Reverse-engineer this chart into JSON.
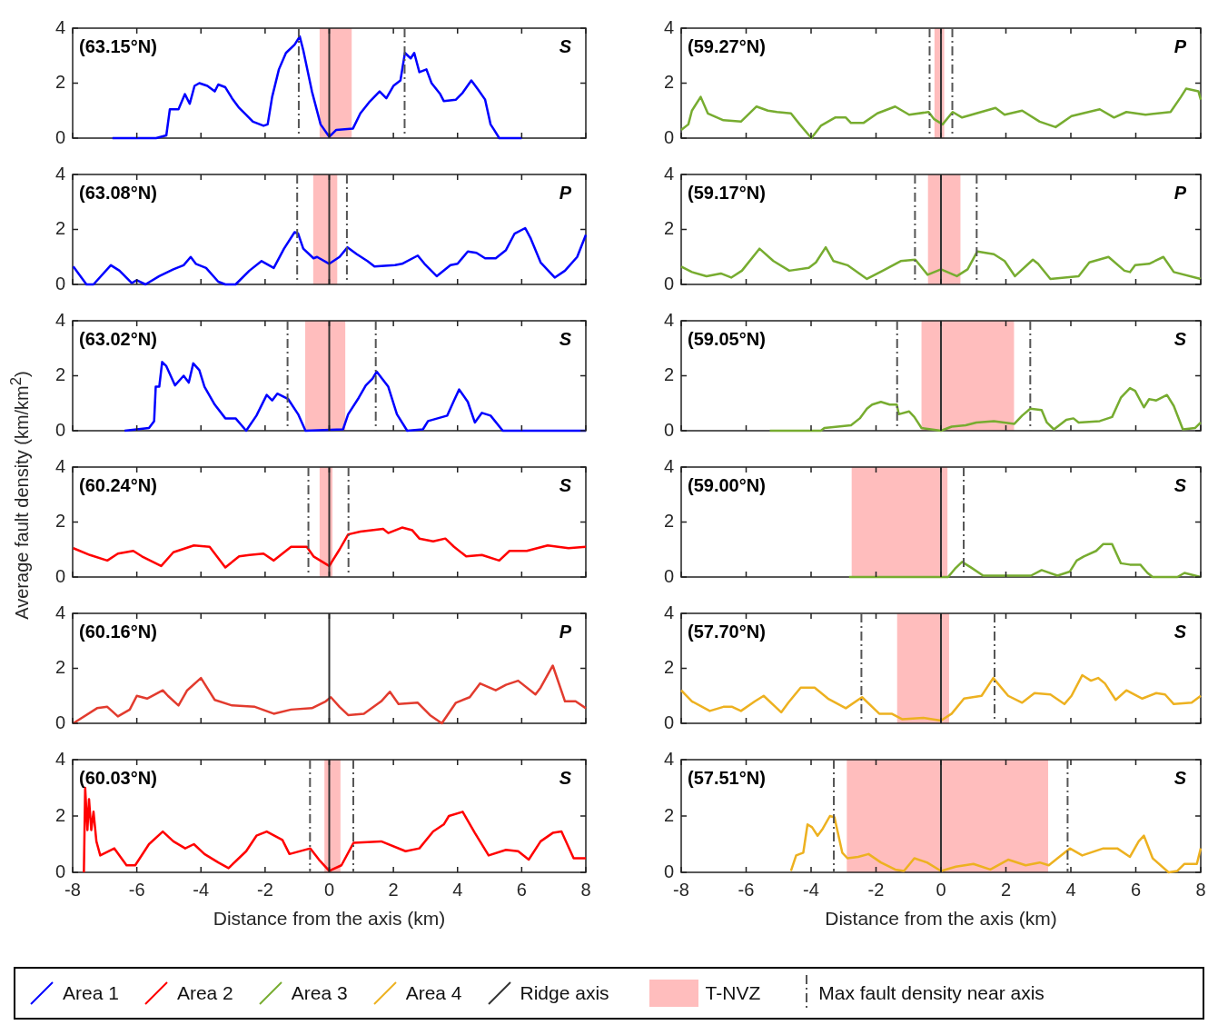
{
  "chart_data": [
    {
      "type": "line",
      "title": "(63.15°N)",
      "annotations": [
        "S"
      ],
      "legend": "bottom",
      "tick_labels": "y",
      "xlim": [
        -8,
        8
      ],
      "xticks": [
        -8,
        -6,
        -4,
        -2,
        0,
        2,
        4,
        6,
        8
      ],
      "ylim": [
        0,
        4
      ],
      "yticks": [
        0,
        2,
        4
      ],
      "grid": false,
      "series": [
        {
          "name": "Area 1",
          "color": "#0000ff",
          "x": [
            -6.76,
            -5.4,
            -5.08,
            -4.97,
            -4.7,
            -4.5,
            -4.35,
            -4.2,
            -4.05,
            -3.8,
            -3.57,
            -3.46,
            -3.24,
            -3.03,
            -2.81,
            -2.59,
            -2.38,
            -2.05,
            -1.92,
            -1.78,
            -1.57,
            -1.35,
            -1.08,
            -0.92,
            -0.81,
            -0.54,
            -0.27,
            0,
            0.22,
            0.74,
            0.97,
            1.24,
            1.57,
            1.78,
            2.0,
            2.22,
            2.36,
            2.54,
            2.65,
            2.81,
            3.03,
            3.19,
            3.46,
            3.57,
            3.95,
            4.16,
            4.43,
            4.65,
            4.86,
            5.03,
            5.14,
            5.3,
            6.0
          ],
          "values": [
            0,
            0,
            0.1,
            1.05,
            1.05,
            1.6,
            1.25,
            1.9,
            2.0,
            1.9,
            1.7,
            1.95,
            1.85,
            1.45,
            1.1,
            0.85,
            0.6,
            0.45,
            0.5,
            1.5,
            2.5,
            3.1,
            3.4,
            3.7,
            3.2,
            1.7,
            0.5,
            0.05,
            0.3,
            0.35,
            0.9,
            1.3,
            1.7,
            1.45,
            1.9,
            2.1,
            3.1,
            2.9,
            3.1,
            2.4,
            2.5,
            2.0,
            1.6,
            1.35,
            1.4,
            1.65,
            2.1,
            1.75,
            1.4,
            0.5,
            0.3,
            0,
            0
          ]
        }
      ],
      "bands": [
        {
          "axis": "x",
          "from": -0.3,
          "to": 0.7,
          "label": "T-NVZ",
          "color": "#ffbdbd"
        }
      ],
      "ref_lines": [
        {
          "axis": "x",
          "value": 0,
          "label": "Ridge axis",
          "color": "#333333",
          "line_style": "solid"
        },
        {
          "axis": "x",
          "value": -0.95,
          "label": "Max fault density near axis",
          "color": "#555555",
          "line_style": "dashed"
        },
        {
          "axis": "x",
          "value": 2.35,
          "color": "#555555",
          "line_style": "dashed"
        }
      ]
    },
    {
      "type": "line",
      "title": "(63.08°N)",
      "annotations": [
        "P"
      ],
      "tick_labels": "y",
      "xlim": [
        -8,
        8
      ],
      "xticks": [
        -8,
        -6,
        -4,
        -2,
        0,
        2,
        4,
        6,
        8
      ],
      "ylim": [
        0,
        4
      ],
      "yticks": [
        0,
        2,
        4
      ],
      "grid": false,
      "series": [
        {
          "color": "#0000ff",
          "x": [
            -7.98,
            -7.57,
            -7.35,
            -6.81,
            -6.54,
            -6.16,
            -6.0,
            -5.73,
            -5.3,
            -4.86,
            -4.54,
            -4.32,
            -4.16,
            -3.84,
            -3.46,
            -3.24,
            -2.92,
            -2.49,
            -2.11,
            -1.73,
            -1.41,
            -1.08,
            -0.97,
            -0.81,
            -0.49,
            -0.38,
            0,
            0.32,
            0.57,
            0.86,
            1.19,
            1.41,
            2.05,
            2.27,
            2.76,
            2.97,
            3.35,
            3.78,
            4.0,
            4.32,
            4.59,
            4.86,
            5.19,
            5.51,
            5.78,
            6.11,
            6.27,
            6.59,
            7.03,
            7.35,
            7.73,
            8.0
          ],
          "values": [
            0.65,
            0,
            0,
            0.7,
            0.5,
            0.05,
            0.15,
            0,
            0.3,
            0.55,
            0.7,
            1.0,
            0.75,
            0.6,
            0.1,
            0,
            0,
            0.5,
            0.85,
            0.6,
            1.3,
            1.9,
            1.85,
            1.3,
            0.95,
            1.0,
            0.75,
            1.0,
            1.35,
            1.1,
            0.85,
            0.65,
            0.7,
            0.75,
            1.05,
            0.75,
            0.3,
            0.7,
            0.75,
            1.2,
            1.15,
            0.95,
            0.95,
            1.25,
            1.85,
            2.05,
            1.7,
            0.8,
            0.25,
            0.5,
            1.0,
            1.8
          ]
        }
      ],
      "bands": [
        {
          "axis": "x",
          "from": -0.5,
          "to": 0.25,
          "color": "#ffbdbd"
        }
      ],
      "ref_lines": [
        {
          "axis": "x",
          "value": 0,
          "color": "#333333",
          "line_style": "solid"
        },
        {
          "axis": "x",
          "value": -1.0,
          "color": "#555555",
          "line_style": "dashed"
        },
        {
          "axis": "x",
          "value": 0.55,
          "color": "#555555",
          "line_style": "dashed"
        }
      ]
    },
    {
      "type": "line",
      "title": "(63.02°N)",
      "annotations": [
        "S"
      ],
      "tick_labels": "y",
      "xlim": [
        -8,
        8
      ],
      "xticks": [
        -8,
        -6,
        -4,
        -2,
        0,
        2,
        4,
        6,
        8
      ],
      "ylim": [
        0,
        4
      ],
      "yticks": [
        0,
        2,
        4
      ],
      "grid": false,
      "series": [
        {
          "color": "#0000ff",
          "x": [
            -6.38,
            -6.0,
            -5.62,
            -5.46,
            -5.41,
            -5.3,
            -5.21,
            -5.08,
            -4.81,
            -4.54,
            -4.38,
            -4.24,
            -4.05,
            -3.89,
            -3.57,
            -3.24,
            -2.92,
            -2.59,
            -2.27,
            -1.95,
            -1.78,
            -1.62,
            -1.28,
            -0.97,
            -0.74,
            0.43,
            0.59,
            0.92,
            1.14,
            1.35,
            1.48,
            1.84,
            2.11,
            2.43,
            2.92,
            3.08,
            3.68,
            3.89,
            4.05,
            4.32,
            4.54,
            4.76,
            5.03,
            5.41,
            6.0,
            8.0
          ],
          "values": [
            0,
            0.05,
            0.1,
            0.35,
            1.6,
            1.6,
            2.5,
            2.35,
            1.65,
            2.0,
            1.75,
            2.45,
            2.2,
            1.6,
            0.95,
            0.45,
            0.45,
            0,
            0.55,
            1.3,
            1.1,
            1.35,
            1.15,
            0.6,
            0,
            0.05,
            0.6,
            1.2,
            1.65,
            1.9,
            2.15,
            1.6,
            0.6,
            0,
            0.05,
            0.35,
            0.55,
            1.1,
            1.5,
            1.05,
            0.3,
            0.65,
            0.55,
            0,
            0,
            0
          ]
        }
      ],
      "bands": [
        {
          "axis": "x",
          "from": -0.75,
          "to": 0.5,
          "color": "#ffbdbd"
        }
      ],
      "ref_lines": [
        {
          "axis": "x",
          "value": 0,
          "color": "#333333",
          "line_style": "solid"
        },
        {
          "axis": "x",
          "value": -1.3,
          "color": "#555555",
          "line_style": "dashed"
        },
        {
          "axis": "x",
          "value": 1.45,
          "color": "#555555",
          "line_style": "dashed"
        }
      ]
    },
    {
      "type": "line",
      "title": "(60.24°N)",
      "annotations": [
        "S"
      ],
      "ylabel": "Average fault density (km/km$^{2}$)",
      "legend": "bottom",
      "tick_labels": "y",
      "xlim": [
        -8,
        8
      ],
      "xticks": [
        -8,
        -6,
        -4,
        -2,
        0,
        2,
        4,
        6,
        8
      ],
      "ylim": [
        0,
        4
      ],
      "yticks": [
        0,
        2,
        4
      ],
      "grid": false,
      "series": [
        {
          "name": "Area 2",
          "color": "#ff0000",
          "x": [
            -7.98,
            -7.46,
            -6.92,
            -6.59,
            -6.11,
            -5.84,
            -5.24,
            -4.86,
            -4.22,
            -3.73,
            -3.24,
            -2.81,
            -2.49,
            -2.05,
            -1.73,
            -1.19,
            -0.7,
            -0.49,
            0,
            0.32,
            0.59,
            0.97,
            1.68,
            1.84,
            2.27,
            2.59,
            2.81,
            3.24,
            3.62,
            3.89,
            4.27,
            4.76,
            5.3,
            5.62,
            6.16,
            6.81,
            7.46,
            8.0
          ],
          "values": [
            1.05,
            0.8,
            0.6,
            0.85,
            0.95,
            0.75,
            0.4,
            0.9,
            1.15,
            1.1,
            0.35,
            0.75,
            0.8,
            0.85,
            0.6,
            1.1,
            1.1,
            0.75,
            0.4,
            1.0,
            1.55,
            1.65,
            1.75,
            1.6,
            1.8,
            1.7,
            1.4,
            1.3,
            1.4,
            1.1,
            0.75,
            0.8,
            0.6,
            0.95,
            0.95,
            1.15,
            1.05,
            1.1
          ]
        }
      ],
      "bands": [
        {
          "axis": "x",
          "from": -0.3,
          "to": 0.1,
          "color": "#ffbdbd"
        }
      ],
      "ref_lines": [
        {
          "axis": "x",
          "value": 0,
          "color": "#333333",
          "line_style": "solid"
        },
        {
          "axis": "x",
          "value": -0.65,
          "color": "#555555",
          "line_style": "dashed"
        },
        {
          "axis": "x",
          "value": 0.6,
          "color": "#555555",
          "line_style": "dashed"
        }
      ]
    },
    {
      "type": "line",
      "title": "(60.16°N)",
      "annotations": [
        "P"
      ],
      "tick_labels": "y",
      "xlim": [
        -8,
        8
      ],
      "xticks": [
        -8,
        -6,
        -4,
        -2,
        0,
        2,
        4,
        6,
        8
      ],
      "ylim": [
        0,
        4
      ],
      "yticks": [
        0,
        2,
        4
      ],
      "grid": false,
      "series": [
        {
          "color": "#e23b2e",
          "x": [
            -7.98,
            -7.24,
            -6.92,
            -6.59,
            -6.22,
            -6.0,
            -5.68,
            -5.19,
            -5.03,
            -4.7,
            -4.43,
            -4.0,
            -3.57,
            -3.03,
            -2.32,
            -1.73,
            -1.19,
            -0.54,
            -0.11,
            0.05,
            0.32,
            0.59,
            1.08,
            1.62,
            1.89,
            2.16,
            2.76,
            3.14,
            3.51,
            3.95,
            4.38,
            4.7,
            5.19,
            5.51,
            5.89,
            6.43,
            6.59,
            6.97,
            7.35,
            7.68,
            8.0
          ],
          "values": [
            0,
            0.55,
            0.6,
            0.25,
            0.5,
            1.0,
            0.9,
            1.2,
            1.0,
            0.65,
            1.2,
            1.65,
            0.85,
            0.65,
            0.6,
            0.35,
            0.5,
            0.55,
            0.8,
            0.95,
            0.6,
            0.3,
            0.35,
            0.8,
            1.15,
            0.7,
            0.75,
            0.3,
            0,
            0.75,
            0.95,
            1.45,
            1.2,
            1.4,
            1.55,
            1.05,
            1.3,
            2.1,
            0.8,
            0.8,
            0.55
          ]
        }
      ],
      "ref_lines": [
        {
          "axis": "x",
          "value": 0,
          "color": "#333333",
          "line_style": "solid"
        }
      ]
    },
    {
      "type": "line",
      "title": "(60.03°N)",
      "annotations": [
        "S"
      ],
      "xlabel": "Distance from the axis (km)",
      "xlim": [
        -8,
        8
      ],
      "xticks": [
        -8,
        -6,
        -4,
        -2,
        0,
        2,
        4,
        6,
        8
      ],
      "ylim": [
        0,
        4
      ],
      "yticks": [
        0,
        2,
        4
      ],
      "grid": false,
      "series": [
        {
          "color": "#ff0000",
          "x": [
            -7.65,
            -7.61,
            -7.54,
            -7.49,
            -7.42,
            -7.35,
            -7.26,
            -7.14,
            -6.7,
            -6.32,
            -6.05,
            -5.62,
            -5.19,
            -4.86,
            -4.49,
            -4.22,
            -3.89,
            -3.46,
            -3.14,
            -2.59,
            -2.27,
            -1.95,
            -1.46,
            -1.24,
            -0.59,
            -0.32,
            0,
            0.38,
            0.76,
            1.62,
            2.38,
            2.81,
            3.24,
            3.57,
            3.73,
            4.16,
            4.54,
            4.97,
            5.51,
            5.89,
            6.22,
            6.59,
            6.97,
            7.24,
            7.62,
            8.0
          ],
          "values": [
            0,
            3.0,
            1.5,
            2.6,
            1.5,
            2.15,
            1.1,
            0.6,
            0.85,
            0.25,
            0.25,
            1.0,
            1.45,
            1.1,
            0.85,
            1.0,
            0.65,
            0.35,
            0.15,
            0.75,
            1.3,
            1.45,
            1.15,
            0.65,
            0.85,
            0.45,
            0.05,
            0.25,
            1.05,
            1.1,
            0.75,
            0.85,
            1.45,
            1.7,
            2.0,
            2.15,
            1.4,
            0.6,
            0.8,
            0.75,
            0.45,
            1.1,
            1.4,
            1.45,
            0.5,
            0.5
          ]
        }
      ],
      "bands": [
        {
          "axis": "x",
          "from": -0.15,
          "to": 0.35,
          "color": "#ffbdbd"
        }
      ],
      "ref_lines": [
        {
          "axis": "x",
          "value": 0,
          "color": "#333333",
          "line_style": "solid"
        },
        {
          "axis": "x",
          "value": -0.6,
          "color": "#555555",
          "line_style": "dashed"
        },
        {
          "axis": "x",
          "value": 0.75,
          "color": "#555555",
          "line_style": "dashed"
        }
      ]
    },
    {
      "type": "line",
      "title": "(59.27°N)",
      "annotations": [
        "P"
      ],
      "legend": "bottom",
      "tick_labels": "y",
      "xlim": [
        -8,
        8
      ],
      "xticks": [
        -8,
        -6,
        -4,
        -2,
        0,
        2,
        4,
        6,
        8
      ],
      "ylim": [
        0,
        4
      ],
      "yticks": [
        0,
        2,
        4
      ],
      "grid": false,
      "series": [
        {
          "name": "Area 3",
          "color": "#77ac30",
          "x": [
            -8.0,
            -7.78,
            -7.67,
            -7.4,
            -7.18,
            -6.7,
            -6.16,
            -5.68,
            -5.33,
            -5.05,
            -4.62,
            -4.35,
            -3.99,
            -3.7,
            -3.26,
            -2.93,
            -2.77,
            -2.39,
            -1.96,
            -1.41,
            -0.98,
            -0.38,
            -0.22,
            0.05,
            0.36,
            0.65,
            1.09,
            1.68,
            1.96,
            2.5,
            3.04,
            3.53,
            4.02,
            4.89,
            5.33,
            5.71,
            6.3,
            7.07,
            7.39,
            7.55,
            7.93,
            8.0
          ],
          "values": [
            0.3,
            0.5,
            1.0,
            1.5,
            0.9,
            0.65,
            0.6,
            1.15,
            1.0,
            0.95,
            0.9,
            0.5,
            0,
            0.45,
            0.75,
            0.75,
            0.55,
            0.55,
            0.9,
            1.15,
            0.85,
            0.95,
            0.7,
            0.5,
            0.95,
            0.75,
            0.9,
            1.1,
            0.85,
            1.0,
            0.6,
            0.4,
            0.8,
            1.05,
            0.75,
            0.95,
            0.85,
            0.95,
            1.5,
            1.8,
            1.7,
            1.4
          ]
        }
      ],
      "bands": [
        {
          "axis": "x",
          "from": -0.2,
          "to": 0.1,
          "color": "#ffbdbd"
        }
      ],
      "ref_lines": [
        {
          "axis": "x",
          "value": 0,
          "color": "#333333",
          "line_style": "solid"
        },
        {
          "axis": "x",
          "value": -0.35,
          "color": "#555555",
          "line_style": "dashed"
        },
        {
          "axis": "x",
          "value": 0.35,
          "color": "#555555",
          "line_style": "dashed"
        }
      ]
    },
    {
      "type": "line",
      "title": "(59.17°N)",
      "annotations": [
        "P"
      ],
      "tick_labels": "y",
      "xlim": [
        -8,
        8
      ],
      "xticks": [
        -8,
        -6,
        -4,
        -2,
        0,
        2,
        4,
        6,
        8
      ],
      "ylim": [
        0,
        4
      ],
      "yticks": [
        0,
        2,
        4
      ],
      "grid": false,
      "series": [
        {
          "color": "#77ac30",
          "x": [
            -8.0,
            -7.67,
            -7.22,
            -6.78,
            -6.46,
            -6.13,
            -5.59,
            -5.16,
            -4.67,
            -4.07,
            -3.85,
            -3.55,
            -3.31,
            -2.88,
            -2.28,
            -1.79,
            -1.24,
            -0.79,
            -0.41,
            0,
            0.49,
            0.82,
            1.12,
            1.63,
            1.96,
            2.28,
            2.83,
            2.99,
            3.37,
            4.24,
            4.57,
            5.16,
            5.65,
            5.82,
            5.98,
            6.41,
            6.85,
            7.17,
            8.0
          ],
          "values": [
            0.65,
            0.45,
            0.3,
            0.4,
            0.25,
            0.5,
            1.3,
            0.85,
            0.5,
            0.6,
            0.8,
            1.35,
            0.85,
            0.7,
            0.2,
            0.5,
            0.85,
            0.9,
            0.35,
            0.55,
            0.3,
            0.55,
            1.2,
            1.1,
            0.85,
            0.3,
            0.9,
            0.75,
            0.2,
            0.3,
            0.8,
            1.0,
            0.5,
            0.45,
            0.7,
            0.75,
            1.0,
            0.45,
            0.2
          ]
        }
      ],
      "bands": [
        {
          "axis": "x",
          "from": -0.4,
          "to": 0.6,
          "color": "#ffbdbd"
        }
      ],
      "ref_lines": [
        {
          "axis": "x",
          "value": 0,
          "color": "#333333",
          "line_style": "solid"
        },
        {
          "axis": "x",
          "value": -0.8,
          "color": "#555555",
          "line_style": "dashed"
        },
        {
          "axis": "x",
          "value": 1.1,
          "color": "#555555",
          "line_style": "dashed"
        }
      ]
    },
    {
      "type": "line",
      "title": "(59.05°N)",
      "annotations": [
        "S"
      ],
      "tick_labels": "y",
      "xlim": [
        -8,
        8
      ],
      "xticks": [
        -8,
        -6,
        -4,
        -2,
        0,
        2,
        4,
        6,
        8
      ],
      "ylim": [
        0,
        4
      ],
      "yticks": [
        0,
        2,
        4
      ],
      "grid": false,
      "series": [
        {
          "color": "#77ac30",
          "x": [
            -5.27,
            -3.7,
            -3.59,
            -2.77,
            -2.5,
            -2.28,
            -2.12,
            -1.85,
            -1.58,
            -1.36,
            -1.3,
            -0.98,
            -0.82,
            -0.6,
            0,
            0.33,
            0.76,
            1.09,
            1.63,
            2.26,
            2.5,
            2.75,
            3.1,
            3.26,
            3.48,
            3.86,
            4.08,
            4.24,
            4.89,
            5.27,
            5.54,
            5.82,
            5.98,
            6.25,
            6.41,
            6.63,
            6.96,
            7.17,
            7.45,
            7.83,
            8.0
          ],
          "values": [
            0,
            0,
            0.1,
            0.2,
            0.45,
            0.8,
            0.95,
            1.05,
            0.95,
            0.95,
            0.6,
            0.7,
            0.5,
            0.1,
            0,
            0.15,
            0.2,
            0.3,
            0.35,
            0.25,
            0.55,
            0.8,
            0.75,
            0.3,
            0.05,
            0.4,
            0.45,
            0.3,
            0.35,
            0.5,
            1.2,
            1.55,
            1.45,
            0.85,
            1.15,
            1.1,
            1.3,
            0.9,
            0.05,
            0.1,
            0.3
          ]
        }
      ],
      "bands": [
        {
          "axis": "x",
          "from": -0.6,
          "to": 2.25,
          "color": "#ffbdbd"
        }
      ],
      "ref_lines": [
        {
          "axis": "x",
          "value": 0,
          "color": "#333333",
          "line_style": "solid"
        },
        {
          "axis": "x",
          "value": -1.35,
          "color": "#555555",
          "line_style": "dashed"
        },
        {
          "axis": "x",
          "value": 2.75,
          "color": "#555555",
          "line_style": "dashed"
        }
      ]
    },
    {
      "type": "line",
      "title": "(59.00°N)",
      "annotations": [
        "S"
      ],
      "tick_labels": "y",
      "xlim": [
        -8,
        8
      ],
      "xticks": [
        -8,
        -6,
        -4,
        -2,
        0,
        2,
        4,
        6,
        8
      ],
      "ylim": [
        0,
        4
      ],
      "yticks": [
        0,
        2,
        4
      ],
      "grid": false,
      "series": [
        {
          "color": "#77ac30",
          "x": [
            -2.83,
            0,
            0.22,
            0.43,
            0.65,
            0.92,
            1.3,
            2.77,
            3.1,
            3.59,
            3.97,
            4.18,
            4.4,
            4.78,
            5.0,
            5.27,
            5.54,
            5.82,
            6.14,
            6.36,
            6.52,
            7.28,
            7.5,
            7.83,
            8.0
          ],
          "values": [
            0,
            0,
            0,
            0.3,
            0.55,
            0.35,
            0.05,
            0.05,
            0.25,
            0.05,
            0.2,
            0.6,
            0.75,
            0.95,
            1.2,
            1.2,
            0.5,
            0.45,
            0.45,
            0.15,
            0,
            0,
            0.15,
            0.05,
            0
          ]
        }
      ],
      "bands": [
        {
          "axis": "x",
          "from": -2.75,
          "to": 0.2,
          "color": "#ffbdbd"
        }
      ],
      "ref_lines": [
        {
          "axis": "x",
          "value": 0,
          "color": "#333333",
          "line_style": "solid"
        },
        {
          "axis": "x",
          "value": 0.7,
          "color": "#555555",
          "line_style": "dashed"
        }
      ]
    },
    {
      "type": "line",
      "title": "(57.70°N)",
      "annotations": [
        "S"
      ],
      "legend": "bottom",
      "tick_labels": "y",
      "xlim": [
        -8,
        8
      ],
      "xticks": [
        -8,
        -6,
        -4,
        -2,
        0,
        2,
        4,
        6,
        8
      ],
      "ylim": [
        0,
        4
      ],
      "yticks": [
        0,
        2,
        4
      ],
      "grid": false,
      "series": [
        {
          "name": "Area 4",
          "color": "#edb120",
          "x": [
            -8.0,
            -7.67,
            -7.12,
            -6.7,
            -6.43,
            -6.16,
            -5.73,
            -5.46,
            -4.92,
            -4.7,
            -4.32,
            -3.89,
            -3.48,
            -2.93,
            -2.43,
            -1.9,
            -1.52,
            -1.2,
            -0.54,
            0,
            0.33,
            0.71,
            1.25,
            1.61,
            2.07,
            2.5,
            2.88,
            3.37,
            3.8,
            4.02,
            4.35,
            4.62,
            4.84,
            5.05,
            5.38,
            5.71,
            6.2,
            6.63,
            6.9,
            7.17,
            7.72,
            8.0
          ],
          "values": [
            1.2,
            0.8,
            0.45,
            0.6,
            0.6,
            0.45,
            0.8,
            1.0,
            0.4,
            0.75,
            1.3,
            1.3,
            0.9,
            0.55,
            0.95,
            0.35,
            0.35,
            0.15,
            0.2,
            0.1,
            0.35,
            0.9,
            1.0,
            1.65,
            1.0,
            0.75,
            1.1,
            1.05,
            0.7,
            1.0,
            1.75,
            1.55,
            1.65,
            1.45,
            0.85,
            1.2,
            0.9,
            1.1,
            1.05,
            0.7,
            0.75,
            1.0
          ]
        }
      ],
      "bands": [
        {
          "axis": "x",
          "from": -1.35,
          "to": 0.25,
          "color": "#ffbdbd"
        }
      ],
      "ref_lines": [
        {
          "axis": "x",
          "value": 0,
          "color": "#333333",
          "line_style": "solid"
        },
        {
          "axis": "x",
          "value": -2.45,
          "color": "#555555",
          "line_style": "dashed"
        },
        {
          "axis": "x",
          "value": 1.65,
          "color": "#555555",
          "line_style": "dashed"
        }
      ]
    },
    {
      "type": "line",
      "title": "(57.51°N)",
      "annotations": [
        "S"
      ],
      "xlabel": "Distance from the axis (km)",
      "xlim": [
        -8,
        8
      ],
      "xticks": [
        -8,
        -6,
        -4,
        -2,
        0,
        2,
        4,
        6,
        8
      ],
      "ylim": [
        0,
        4
      ],
      "yticks": [
        0,
        2,
        4
      ],
      "grid": false,
      "series": [
        {
          "color": "#edb120",
          "x": [
            -4.62,
            -4.46,
            -4.24,
            -4.11,
            -3.97,
            -3.8,
            -3.64,
            -3.42,
            -3.28,
            -3.04,
            -2.88,
            -2.55,
            -2.23,
            -1.85,
            -1.41,
            -1.14,
            -0.82,
            -0.43,
            0,
            0.46,
            1.0,
            1.52,
            2.07,
            2.61,
            3.04,
            3.32,
            3.59,
            3.97,
            4.35,
            5.0,
            5.43,
            5.82,
            6.09,
            6.25,
            6.52,
            7.01,
            7.28,
            7.5,
            7.88,
            8.0
          ],
          "values": [
            0.05,
            0.6,
            0.7,
            1.7,
            1.6,
            1.3,
            1.55,
            2.0,
            1.95,
            0.7,
            0.5,
            0.55,
            0.65,
            0.35,
            0.1,
            0.05,
            0.5,
            0.35,
            0.05,
            0.2,
            0.3,
            0.1,
            0.45,
            0.25,
            0.35,
            0.25,
            0.5,
            0.85,
            0.6,
            0.85,
            0.85,
            0.55,
            1.1,
            1.3,
            0.5,
            0,
            0.05,
            0.3,
            0.3,
            0.85
          ]
        }
      ],
      "bands": [
        {
          "axis": "x",
          "from": -2.9,
          "to": 3.3,
          "color": "#ffbdbd"
        }
      ],
      "ref_lines": [
        {
          "axis": "x",
          "value": 0,
          "color": "#333333",
          "line_style": "solid"
        },
        {
          "axis": "x",
          "value": -3.3,
          "color": "#555555",
          "line_style": "dashed"
        },
        {
          "axis": "x",
          "value": 3.9,
          "color": "#555555",
          "line_style": "dashed"
        }
      ]
    }
  ]
}
